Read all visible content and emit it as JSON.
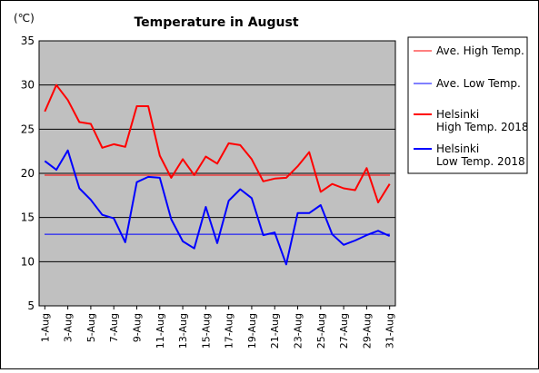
{
  "chart_data": {
    "type": "line",
    "title": "Temperature in August",
    "unit_label": "(℃)",
    "ylim": [
      5,
      35
    ],
    "yticks": [
      5,
      10,
      15,
      20,
      25,
      30,
      35
    ],
    "grid": true,
    "x_tick_labels": [
      "1-Aug",
      "3-Aug",
      "5-Aug",
      "7-Aug",
      "9-Aug",
      "11-Aug",
      "13-Aug",
      "15-Aug",
      "17-Aug",
      "19-Aug",
      "21-Aug",
      "23-Aug",
      "25-Aug",
      "27-Aug",
      "29-Aug",
      "31-Aug"
    ],
    "x_tick_days": [
      1,
      3,
      5,
      7,
      9,
      11,
      13,
      15,
      17,
      19,
      21,
      23,
      25,
      27,
      29,
      31
    ],
    "x": [
      1,
      2,
      3,
      4,
      5,
      6,
      7,
      8,
      9,
      10,
      11,
      12,
      13,
      14,
      15,
      16,
      17,
      18,
      19,
      20,
      21,
      22,
      23,
      24,
      25,
      26,
      27,
      28,
      29,
      30,
      31
    ],
    "legend_position": "right",
    "series": [
      {
        "name": "Ave. High Temp.",
        "color": "#ff0000",
        "style": "thin",
        "constant": 19.8
      },
      {
        "name": "Ave. Low Temp.",
        "color": "#0000ff",
        "style": "thin",
        "constant": 13.1
      },
      {
        "name": "Helsinki High Temp. 2018",
        "name_lines": [
          "Helsinki",
          "High Temp. 2018"
        ],
        "color": "#ff0000",
        "style": "thick",
        "values": [
          27.0,
          30.0,
          28.3,
          25.8,
          25.6,
          22.9,
          23.3,
          23.0,
          27.6,
          27.6,
          22.0,
          19.5,
          21.6,
          19.8,
          21.9,
          21.1,
          23.4,
          23.2,
          21.6,
          19.1,
          19.4,
          19.5,
          20.8,
          22.4,
          17.9,
          18.8,
          18.3,
          18.1,
          20.6,
          16.7,
          18.8
        ]
      },
      {
        "name": "Helsinki Low Temp. 2018",
        "name_lines": [
          "Helsinki",
          "Low Temp. 2018"
        ],
        "color": "#0000ff",
        "style": "thick",
        "values": [
          21.4,
          20.4,
          22.6,
          18.3,
          17.0,
          15.3,
          14.9,
          12.2,
          19.0,
          19.6,
          19.5,
          14.8,
          12.3,
          11.5,
          16.2,
          12.1,
          16.9,
          18.2,
          17.2,
          13.0,
          13.3,
          9.7,
          15.5,
          15.5,
          16.4,
          13.1,
          11.9,
          12.4,
          13.0,
          13.5,
          12.9
        ]
      }
    ]
  }
}
